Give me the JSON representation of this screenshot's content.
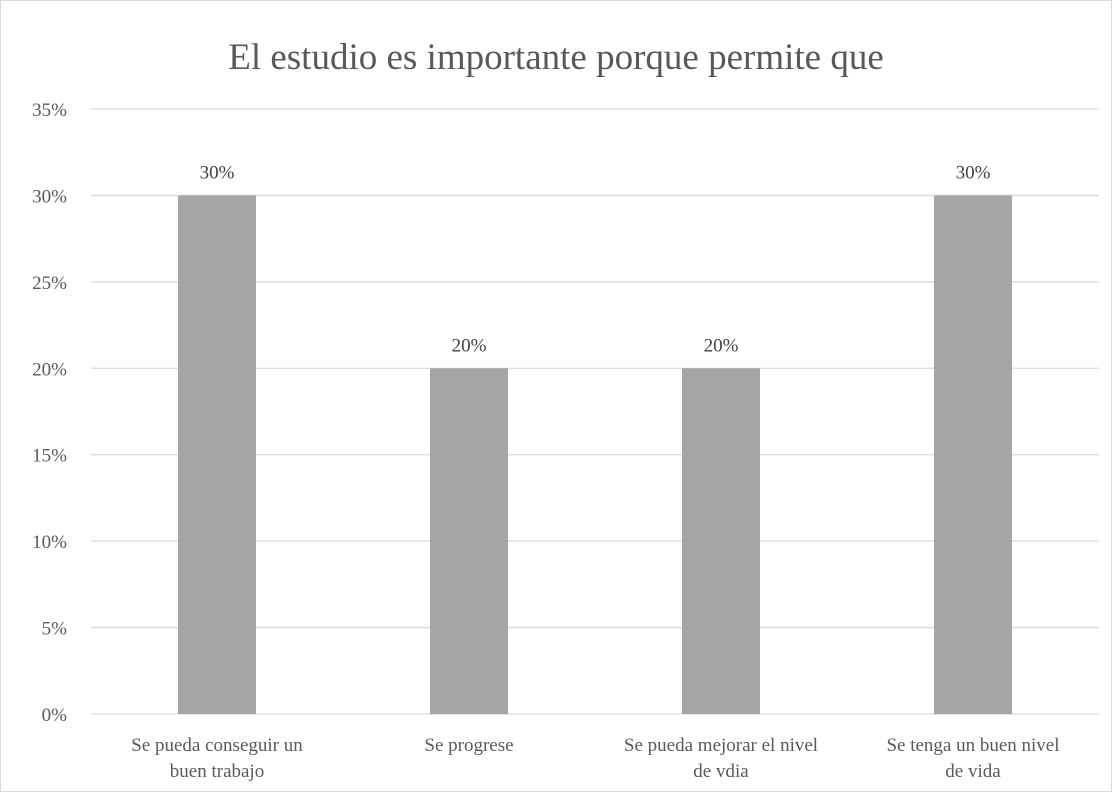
{
  "chart_data": {
    "type": "bar",
    "title": "El estudio es importante porque permite que",
    "categories": [
      [
        "Se pueda conseguir un",
        "buen trabajo"
      ],
      [
        "Se progrese"
      ],
      [
        "Se pueda mejorar el nivel",
        "de vdia"
      ],
      [
        "Se tenga  un buen nivel",
        "de vida"
      ]
    ],
    "values": [
      30,
      20,
      20,
      30
    ],
    "data_labels": [
      "30%",
      "20%",
      "20%",
      "30%"
    ],
    "ylim": [
      0,
      35
    ],
    "yticks": [
      0,
      5,
      10,
      15,
      20,
      25,
      30,
      35
    ],
    "ytick_labels": [
      "0%",
      "5%",
      "10%",
      "15%",
      "20%",
      "25%",
      "30%",
      "35%"
    ],
    "xlabel": "",
    "ylabel": "",
    "grid": true,
    "legend": "none",
    "colors": {
      "bar": "#a5a5a5",
      "grid": "#d9d9d9",
      "axis": "#d9d9d9",
      "text": "#595959"
    }
  }
}
